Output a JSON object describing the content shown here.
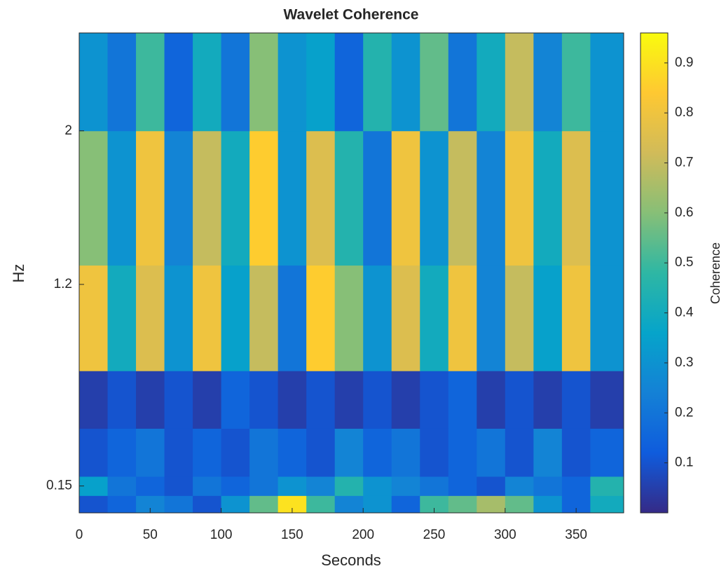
{
  "chart_data": {
    "type": "heatmap",
    "title": "Wavelet Coherence",
    "x_label": "Seconds",
    "y_label": "Hz",
    "colorbar_label": "Coherence",
    "xlim": [
      0,
      383.5
    ],
    "ylim": [
      0.01,
      2.51
    ],
    "xticks": [
      0,
      50,
      100,
      150,
      200,
      250,
      300,
      350
    ],
    "yticks": [
      0.15,
      1.2,
      2
    ],
    "clim": [
      0,
      0.96
    ],
    "cticks": [
      0.1,
      0.2,
      0.3,
      0.4,
      0.5,
      0.6,
      0.7,
      0.8,
      0.9
    ],
    "colormap": [
      "#352a87",
      "#0f5cdd",
      "#1481d6",
      "#06a4ca",
      "#2eb7a4",
      "#87bf77",
      "#d1bb59",
      "#fec832",
      "#f9fb0e"
    ],
    "x_edges": [
      0,
      20,
      40,
      60,
      80,
      100,
      120,
      140,
      160,
      180,
      200,
      220,
      240,
      260,
      280,
      300,
      320,
      340,
      360,
      383.5
    ],
    "y_edges": [
      0.01,
      0.1,
      0.2,
      0.45,
      0.75,
      1.3,
      2.0,
      2.51
    ],
    "z": [
      [
        0.1,
        0.15,
        0.25,
        0.2,
        0.1,
        0.3,
        0.55,
        0.9,
        0.5,
        0.25,
        0.3,
        0.15,
        0.5,
        0.55,
        0.65,
        0.55,
        0.3,
        0.15,
        0.4
      ],
      [
        0.35,
        0.2,
        0.15,
        0.1,
        0.2,
        0.15,
        0.2,
        0.3,
        0.25,
        0.45,
        0.3,
        0.25,
        0.2,
        0.15,
        0.1,
        0.25,
        0.2,
        0.15,
        0.45
      ],
      [
        0.1,
        0.15,
        0.2,
        0.1,
        0.15,
        0.1,
        0.2,
        0.15,
        0.1,
        0.25,
        0.15,
        0.2,
        0.1,
        0.15,
        0.2,
        0.1,
        0.25,
        0.1,
        0.15
      ],
      [
        0.05,
        0.1,
        0.05,
        0.1,
        0.05,
        0.15,
        0.1,
        0.05,
        0.1,
        0.05,
        0.1,
        0.05,
        0.1,
        0.15,
        0.05,
        0.1,
        0.05,
        0.1,
        0.05
      ],
      [
        0.8,
        0.4,
        0.75,
        0.3,
        0.8,
        0.35,
        0.7,
        0.2,
        0.85,
        0.6,
        0.3,
        0.75,
        0.4,
        0.8,
        0.25,
        0.7,
        0.35,
        0.8,
        0.3
      ],
      [
        0.6,
        0.3,
        0.8,
        0.25,
        0.7,
        0.4,
        0.85,
        0.3,
        0.75,
        0.45,
        0.2,
        0.8,
        0.3,
        0.7,
        0.25,
        0.8,
        0.4,
        0.75,
        0.3
      ],
      [
        0.3,
        0.2,
        0.5,
        0.15,
        0.4,
        0.2,
        0.6,
        0.3,
        0.35,
        0.15,
        0.45,
        0.3,
        0.55,
        0.2,
        0.4,
        0.7,
        0.25,
        0.5,
        0.3
      ]
    ]
  }
}
